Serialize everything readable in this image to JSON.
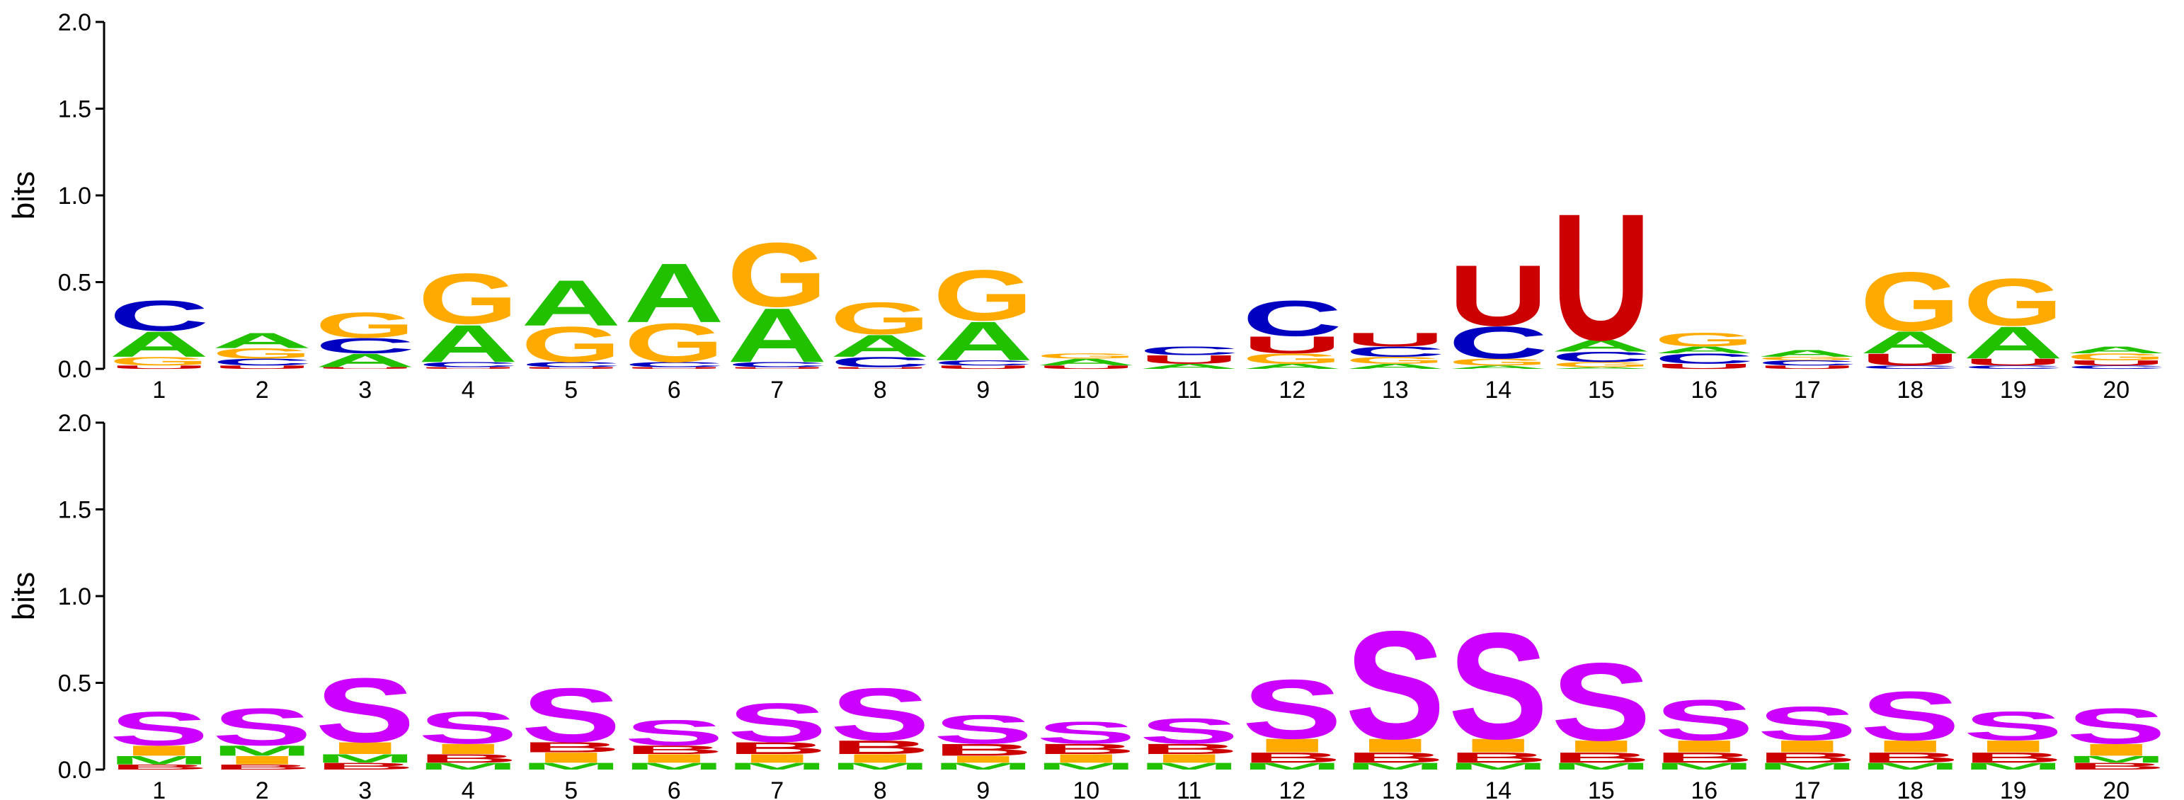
{
  "colors": {
    "A": "#21c100",
    "C": "#0000c0",
    "G": "#ffaa00",
    "U": "#cc0000",
    "S": "#cc00ff",
    "M": "#21c100",
    "B": "#cc0000",
    "I": "#ffaa00",
    "E": "#0000c0"
  },
  "chart_data": [
    {
      "type": "sequence-logo",
      "ylabel": "bits",
      "ylim": [
        0,
        2.0
      ],
      "yticks": [
        "0.0",
        "0.5",
        "1.0",
        "1.5",
        "2.0"
      ],
      "positions": [
        "1",
        "2",
        "3",
        "4",
        "5",
        "6",
        "7",
        "8",
        "9",
        "10",
        "11",
        "12",
        "13",
        "14",
        "15",
        "16",
        "17",
        "18",
        "19",
        "20"
      ],
      "stacks": [
        [
          [
            "U",
            0.02
          ],
          [
            "G",
            0.05
          ],
          [
            "A",
            0.15
          ],
          [
            "C",
            0.18
          ]
        ],
        [
          [
            "U",
            0.02
          ],
          [
            "C",
            0.04
          ],
          [
            "G",
            0.06
          ],
          [
            "A",
            0.09
          ]
        ],
        [
          [
            "U",
            0.01
          ],
          [
            "A",
            0.08
          ],
          [
            "C",
            0.09
          ],
          [
            "G",
            0.15
          ]
        ],
        [
          [
            "U",
            0.01
          ],
          [
            "C",
            0.03
          ],
          [
            "A",
            0.22
          ],
          [
            "G",
            0.3
          ]
        ],
        [
          [
            "U",
            0.01
          ],
          [
            "C",
            0.03
          ],
          [
            "G",
            0.21
          ],
          [
            "A",
            0.27
          ]
        ],
        [
          [
            "U",
            0.01
          ],
          [
            "C",
            0.03
          ],
          [
            "G",
            0.23
          ],
          [
            "A",
            0.35
          ]
        ],
        [
          [
            "U",
            0.01
          ],
          [
            "C",
            0.03
          ],
          [
            "A",
            0.32
          ],
          [
            "G",
            0.38
          ]
        ],
        [
          [
            "U",
            0.01
          ],
          [
            "C",
            0.06
          ],
          [
            "A",
            0.13
          ],
          [
            "G",
            0.19
          ]
        ],
        [
          [
            "U",
            0.02
          ],
          [
            "C",
            0.03
          ],
          [
            "A",
            0.23
          ],
          [
            "G",
            0.3
          ]
        ],
        [
          [
            "U",
            0.02
          ],
          [
            "A",
            0.04
          ],
          [
            "G",
            0.03
          ]
        ],
        [
          [
            "A",
            0.03
          ],
          [
            "U",
            0.05
          ],
          [
            "C",
            0.05
          ]
        ],
        [
          [
            "A",
            0.03
          ],
          [
            "G",
            0.06
          ],
          [
            "U",
            0.1
          ],
          [
            "C",
            0.21
          ]
        ],
        [
          [
            "A",
            0.03
          ],
          [
            "G",
            0.04
          ],
          [
            "C",
            0.06
          ],
          [
            "U",
            0.08
          ]
        ],
        [
          [
            "A",
            0.02
          ],
          [
            "G",
            0.04
          ],
          [
            "C",
            0.19
          ],
          [
            "U",
            0.36
          ]
        ],
        [
          [
            "A",
            0.01
          ],
          [
            "G",
            0.03
          ],
          [
            "C",
            0.06
          ],
          [
            "A",
            0.07
          ],
          [
            "U",
            0.75
          ]
        ],
        [
          [
            "U",
            0.03
          ],
          [
            "C",
            0.06
          ],
          [
            "A",
            0.04
          ],
          [
            "G",
            0.08
          ]
        ],
        [
          [
            "U",
            0.02
          ],
          [
            "C",
            0.03
          ],
          [
            "G",
            0.02
          ],
          [
            "A",
            0.04
          ]
        ],
        [
          [
            "C",
            0.02
          ],
          [
            "U",
            0.07
          ],
          [
            "A",
            0.13
          ],
          [
            "G",
            0.35
          ]
        ],
        [
          [
            "C",
            0.02
          ],
          [
            "U",
            0.04
          ],
          [
            "A",
            0.19
          ],
          [
            "G",
            0.28
          ]
        ],
        [
          [
            "C",
            0.02
          ],
          [
            "U",
            0.03
          ],
          [
            "G",
            0.04
          ],
          [
            "A",
            0.04
          ]
        ]
      ]
    },
    {
      "type": "sequence-logo",
      "ylabel": "bits",
      "ylim": [
        0,
        2.0
      ],
      "yticks": [
        "0.0",
        "0.5",
        "1.0",
        "1.5",
        "2.0"
      ],
      "positions": [
        "1",
        "2",
        "3",
        "4",
        "5",
        "6",
        "7",
        "8",
        "9",
        "10",
        "11",
        "12",
        "13",
        "14",
        "15",
        "16",
        "17",
        "18",
        "19",
        "20"
      ],
      "stacks": [
        [
          [
            "B",
            0.03
          ],
          [
            "M",
            0.05
          ],
          [
            "I",
            0.06
          ],
          [
            "S",
            0.2
          ]
        ],
        [
          [
            "B",
            0.03
          ],
          [
            "I",
            0.05
          ],
          [
            "M",
            0.06
          ],
          [
            "S",
            0.22
          ]
        ],
        [
          [
            "B",
            0.04
          ],
          [
            "M",
            0.05
          ],
          [
            "I",
            0.07
          ],
          [
            "S",
            0.38
          ]
        ],
        [
          [
            "M",
            0.04
          ],
          [
            "B",
            0.05
          ],
          [
            "I",
            0.06
          ],
          [
            "S",
            0.19
          ]
        ],
        [
          [
            "M",
            0.04
          ],
          [
            "I",
            0.06
          ],
          [
            "B",
            0.06
          ],
          [
            "S",
            0.32
          ]
        ],
        [
          [
            "M",
            0.04
          ],
          [
            "I",
            0.05
          ],
          [
            "B",
            0.05
          ],
          [
            "S",
            0.15
          ]
        ],
        [
          [
            "M",
            0.04
          ],
          [
            "I",
            0.05
          ],
          [
            "B",
            0.07
          ],
          [
            "S",
            0.23
          ]
        ],
        [
          [
            "M",
            0.04
          ],
          [
            "I",
            0.05
          ],
          [
            "B",
            0.08
          ],
          [
            "S",
            0.31
          ]
        ],
        [
          [
            "M",
            0.04
          ],
          [
            "I",
            0.04
          ],
          [
            "B",
            0.07
          ],
          [
            "S",
            0.17
          ]
        ],
        [
          [
            "M",
            0.04
          ],
          [
            "I",
            0.05
          ],
          [
            "B",
            0.06
          ],
          [
            "S",
            0.13
          ]
        ],
        [
          [
            "M",
            0.04
          ],
          [
            "I",
            0.05
          ],
          [
            "B",
            0.06
          ],
          [
            "S",
            0.15
          ]
        ],
        [
          [
            "M",
            0.04
          ],
          [
            "B",
            0.06
          ],
          [
            "I",
            0.08
          ],
          [
            "S",
            0.35
          ]
        ],
        [
          [
            "M",
            0.04
          ],
          [
            "B",
            0.06
          ],
          [
            "I",
            0.08
          ],
          [
            "S",
            0.64
          ]
        ],
        [
          [
            "M",
            0.04
          ],
          [
            "B",
            0.06
          ],
          [
            "I",
            0.08
          ],
          [
            "S",
            0.63
          ]
        ],
        [
          [
            "M",
            0.04
          ],
          [
            "B",
            0.06
          ],
          [
            "I",
            0.07
          ],
          [
            "S",
            0.46
          ]
        ],
        [
          [
            "M",
            0.04
          ],
          [
            "B",
            0.06
          ],
          [
            "I",
            0.07
          ],
          [
            "S",
            0.24
          ]
        ],
        [
          [
            "M",
            0.04
          ],
          [
            "B",
            0.06
          ],
          [
            "I",
            0.07
          ],
          [
            "S",
            0.2
          ]
        ],
        [
          [
            "M",
            0.04
          ],
          [
            "B",
            0.06
          ],
          [
            "I",
            0.07
          ],
          [
            "S",
            0.29
          ]
        ],
        [
          [
            "M",
            0.04
          ],
          [
            "B",
            0.06
          ],
          [
            "I",
            0.07
          ],
          [
            "S",
            0.17
          ]
        ],
        [
          [
            "B",
            0.04
          ],
          [
            "M",
            0.04
          ],
          [
            "I",
            0.07
          ],
          [
            "S",
            0.21
          ]
        ]
      ]
    }
  ]
}
